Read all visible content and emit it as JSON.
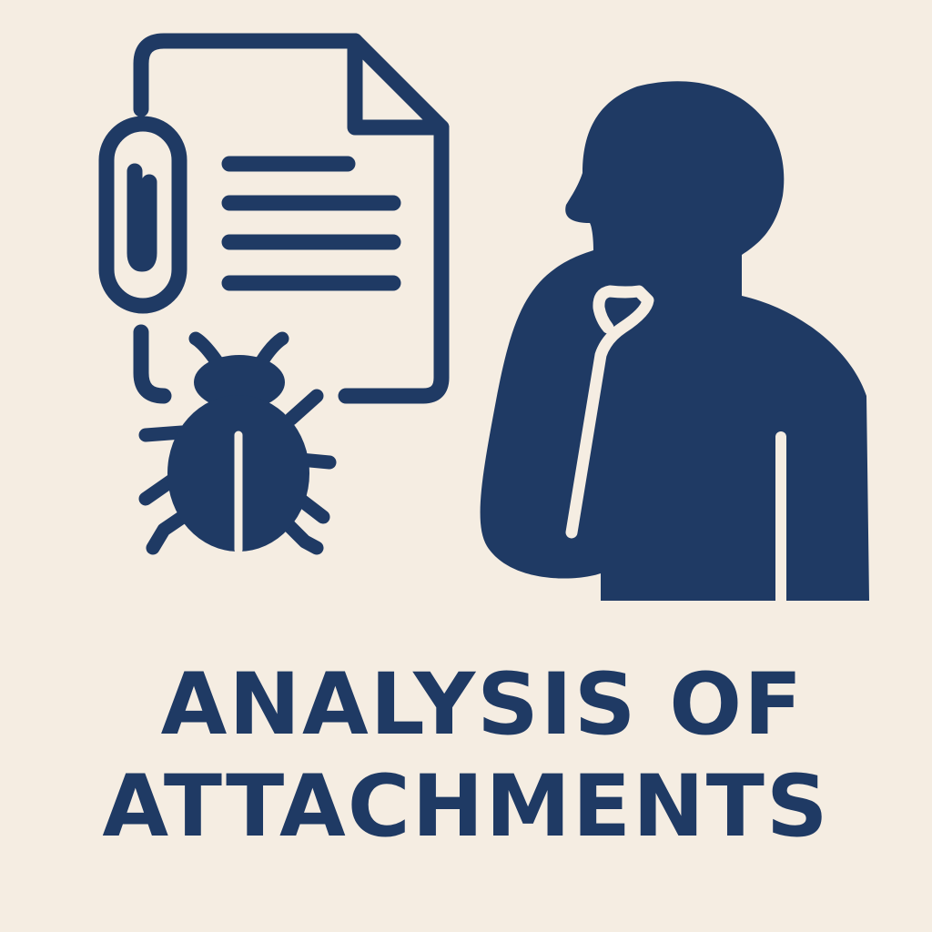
{
  "colors": {
    "background": "#f5ede2",
    "ink": "#1f3a64"
  },
  "illustration": {
    "document_icon": "document-with-paperclip-icon",
    "paperclip_icon": "paperclip-icon",
    "bug_icon": "bug-icon",
    "person_icon": "thinking-person-icon"
  },
  "title": {
    "line1": "ANALYSIS OF",
    "line2": "ATTACHMENTS"
  }
}
